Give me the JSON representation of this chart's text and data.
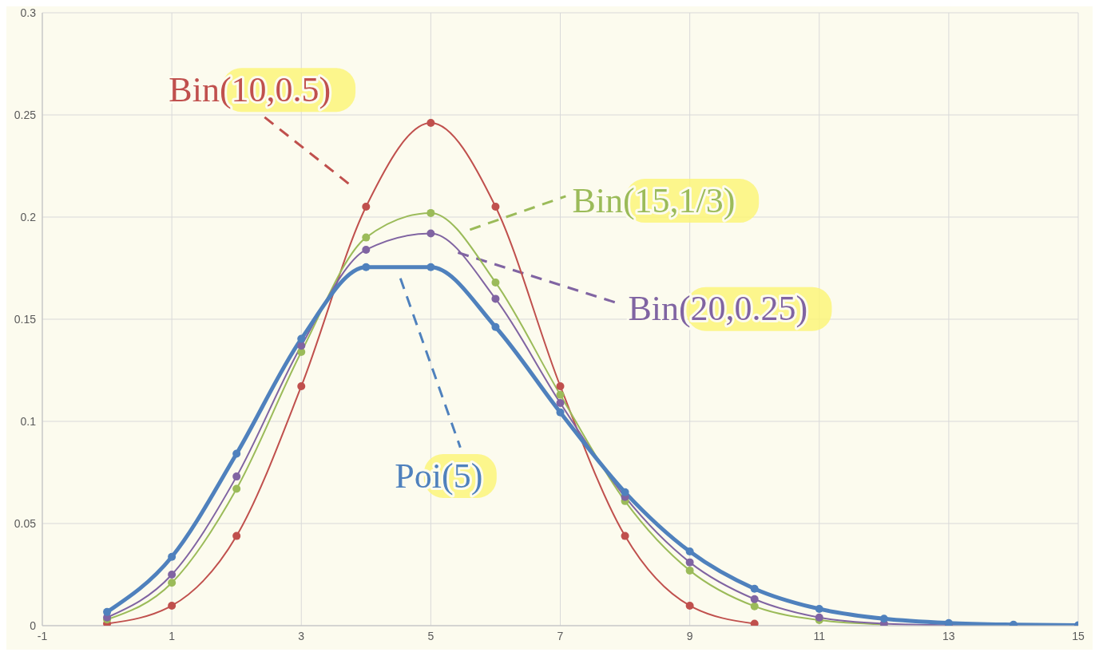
{
  "chart_data": {
    "type": "line",
    "xlim": [
      -1,
      15
    ],
    "xticks": [
      -1,
      1,
      3,
      5,
      7,
      9,
      11,
      13,
      15
    ],
    "ylim": [
      0,
      0.3
    ],
    "yticks": [
      0,
      0.05,
      0.1,
      0.15,
      0.2,
      0.25,
      0.3
    ],
    "grid": true,
    "marker": "circle",
    "series": [
      {
        "name": "Bin(10,0.5)",
        "color": "#c0504d",
        "x": [
          0,
          1,
          2,
          3,
          4,
          5,
          6,
          7,
          8,
          9,
          10
        ],
        "values": [
          0.001,
          0.0098,
          0.0439,
          0.1172,
          0.2051,
          0.2461,
          0.2051,
          0.1172,
          0.0439,
          0.0098,
          0.001
        ]
      },
      {
        "name": "Bin(15,1/3)",
        "color": "#9bbb59",
        "x": [
          0,
          1,
          2,
          3,
          4,
          5,
          6,
          7,
          8,
          9,
          10,
          11,
          12
        ],
        "values": [
          0.003,
          0.021,
          0.067,
          0.134,
          0.19,
          0.202,
          0.168,
          0.113,
          0.061,
          0.027,
          0.0095,
          0.0027,
          0.0006
        ]
      },
      {
        "name": "Bin(20,0.25)",
        "color": "#8064a2",
        "x": [
          0,
          1,
          2,
          3,
          4,
          5,
          6,
          7,
          8,
          9,
          10,
          11,
          12,
          13,
          14,
          15
        ],
        "values": [
          0.004,
          0.025,
          0.073,
          0.137,
          0.184,
          0.192,
          0.16,
          0.109,
          0.063,
          0.031,
          0.013,
          0.004,
          0.001,
          0.0003,
          0.0001,
          0.0
        ]
      },
      {
        "name": "Poi(5)",
        "color": "#4f81bd",
        "x": [
          0,
          1,
          2,
          3,
          4,
          5,
          6,
          7,
          8,
          9,
          10,
          11,
          12,
          13,
          14,
          15
        ],
        "values": [
          0.0067,
          0.0337,
          0.0842,
          0.1404,
          0.1755,
          0.1755,
          0.1462,
          0.1044,
          0.0653,
          0.0363,
          0.0181,
          0.0082,
          0.0034,
          0.0013,
          0.0005,
          0.0002
        ]
      }
    ]
  }
}
